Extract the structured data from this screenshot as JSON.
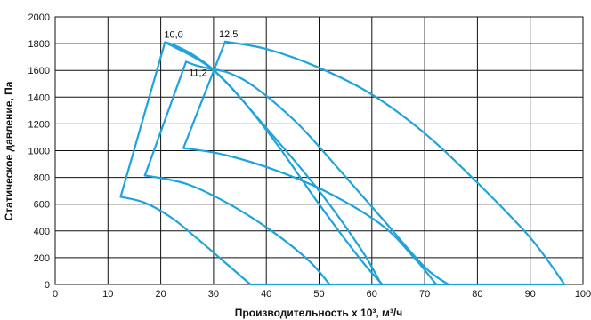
{
  "chart_data": {
    "type": "line",
    "xlabel": "Производительность x 10³, м³/ч",
    "ylabel": "Статическое давление, Па",
    "xlim": [
      0,
      100
    ],
    "ylim": [
      0,
      2000
    ],
    "x_ticks": [
      0,
      10,
      20,
      30,
      40,
      50,
      60,
      70,
      80,
      90,
      100
    ],
    "y_ticks": [
      0,
      200,
      400,
      600,
      800,
      1000,
      1200,
      1400,
      1600,
      1800,
      2000
    ],
    "grid": true,
    "series_color": "#1fa3dc",
    "series": [
      {
        "name": "10,0",
        "x": [
          12.4,
          20.8,
          22.5,
          26.0,
          30.0,
          35.0,
          42.0,
          50.0,
          58.0,
          62.0
        ],
        "y": [
          655,
          1810,
          1790,
          1720,
          1605,
          1400,
          1050,
          600,
          180,
          0
        ]
      },
      {
        "name": "11,2",
        "x": [
          17.0,
          24.8,
          26.5,
          29.0,
          33.0,
          38.0,
          46.0,
          54.0,
          62.0,
          70.0,
          74.5
        ],
        "y": [
          815,
          1665,
          1640,
          1615,
          1580,
          1470,
          1200,
          850,
          490,
          130,
          0
        ]
      },
      {
        "name": "12,5",
        "x": [
          24.3,
          32.2,
          40.0,
          50.0,
          60.0,
          70.0,
          80.0,
          90.0,
          96.5
        ],
        "y": [
          1020,
          1815,
          1760,
          1620,
          1420,
          1130,
          760,
          350,
          0
        ]
      }
    ],
    "minimum_load_boundaries": [
      {
        "x": [
          12.4,
          17.0,
          22.0,
          27.0,
          32.0,
          37.0
        ],
        "y": [
          655,
          610,
          500,
          340,
          170,
          0
        ]
      },
      {
        "x": [
          17.0,
          25.0,
          33.0,
          41.0,
          48.0,
          52.0
        ],
        "y": [
          815,
          750,
          600,
          400,
          180,
          0
        ]
      },
      {
        "x": [
          24.3,
          32.0,
          42.0,
          52.0,
          62.0,
          68.0,
          72.2
        ],
        "y": [
          1020,
          970,
          850,
          680,
          440,
          200,
          0
        ]
      }
    ],
    "peak_boundary": {
      "x": [
        20.8,
        30.0,
        40.0,
        50.0,
        58.0,
        61.8
      ],
      "y": [
        1810,
        1600,
        1170,
        700,
        260,
        0
      ]
    },
    "zero_line": {
      "x": [
        37.0,
        96.5
      ],
      "y": [
        0,
        0
      ]
    }
  }
}
